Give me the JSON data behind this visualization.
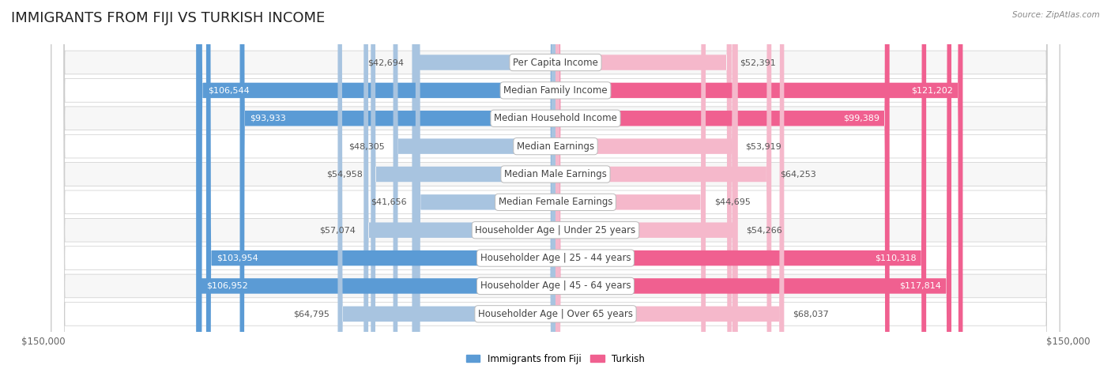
{
  "title": "IMMIGRANTS FROM FIJI VS TURKISH INCOME",
  "source": "Source: ZipAtlas.com",
  "categories": [
    "Per Capita Income",
    "Median Family Income",
    "Median Household Income",
    "Median Earnings",
    "Median Male Earnings",
    "Median Female Earnings",
    "Householder Age | Under 25 years",
    "Householder Age | 25 - 44 years",
    "Householder Age | 45 - 64 years",
    "Householder Age | Over 65 years"
  ],
  "fiji_values": [
    42694,
    106544,
    93933,
    48305,
    54958,
    41656,
    57074,
    103954,
    106952,
    64795
  ],
  "turkish_values": [
    52391,
    121202,
    99389,
    53919,
    64253,
    44695,
    54266,
    110318,
    117814,
    68037
  ],
  "fiji_color": "#a8c4e0",
  "turkish_color": "#f5b8cb",
  "fiji_label": "Immigrants from Fiji",
  "turkish_label": "Turkish",
  "fiji_highlight_color": "#5b9bd5",
  "turkish_highlight_color": "#f06090",
  "highlight_rows": [
    1,
    2,
    7,
    8
  ],
  "max_value": 150000,
  "axis_label_left": "$150,000",
  "axis_label_right": "$150,000",
  "title_fontsize": 13,
  "label_fontsize": 8.5,
  "value_fontsize": 8,
  "bar_height": 0.55,
  "row_bg_color": "#f0f0f0",
  "row_bg_alt": "#ffffff"
}
